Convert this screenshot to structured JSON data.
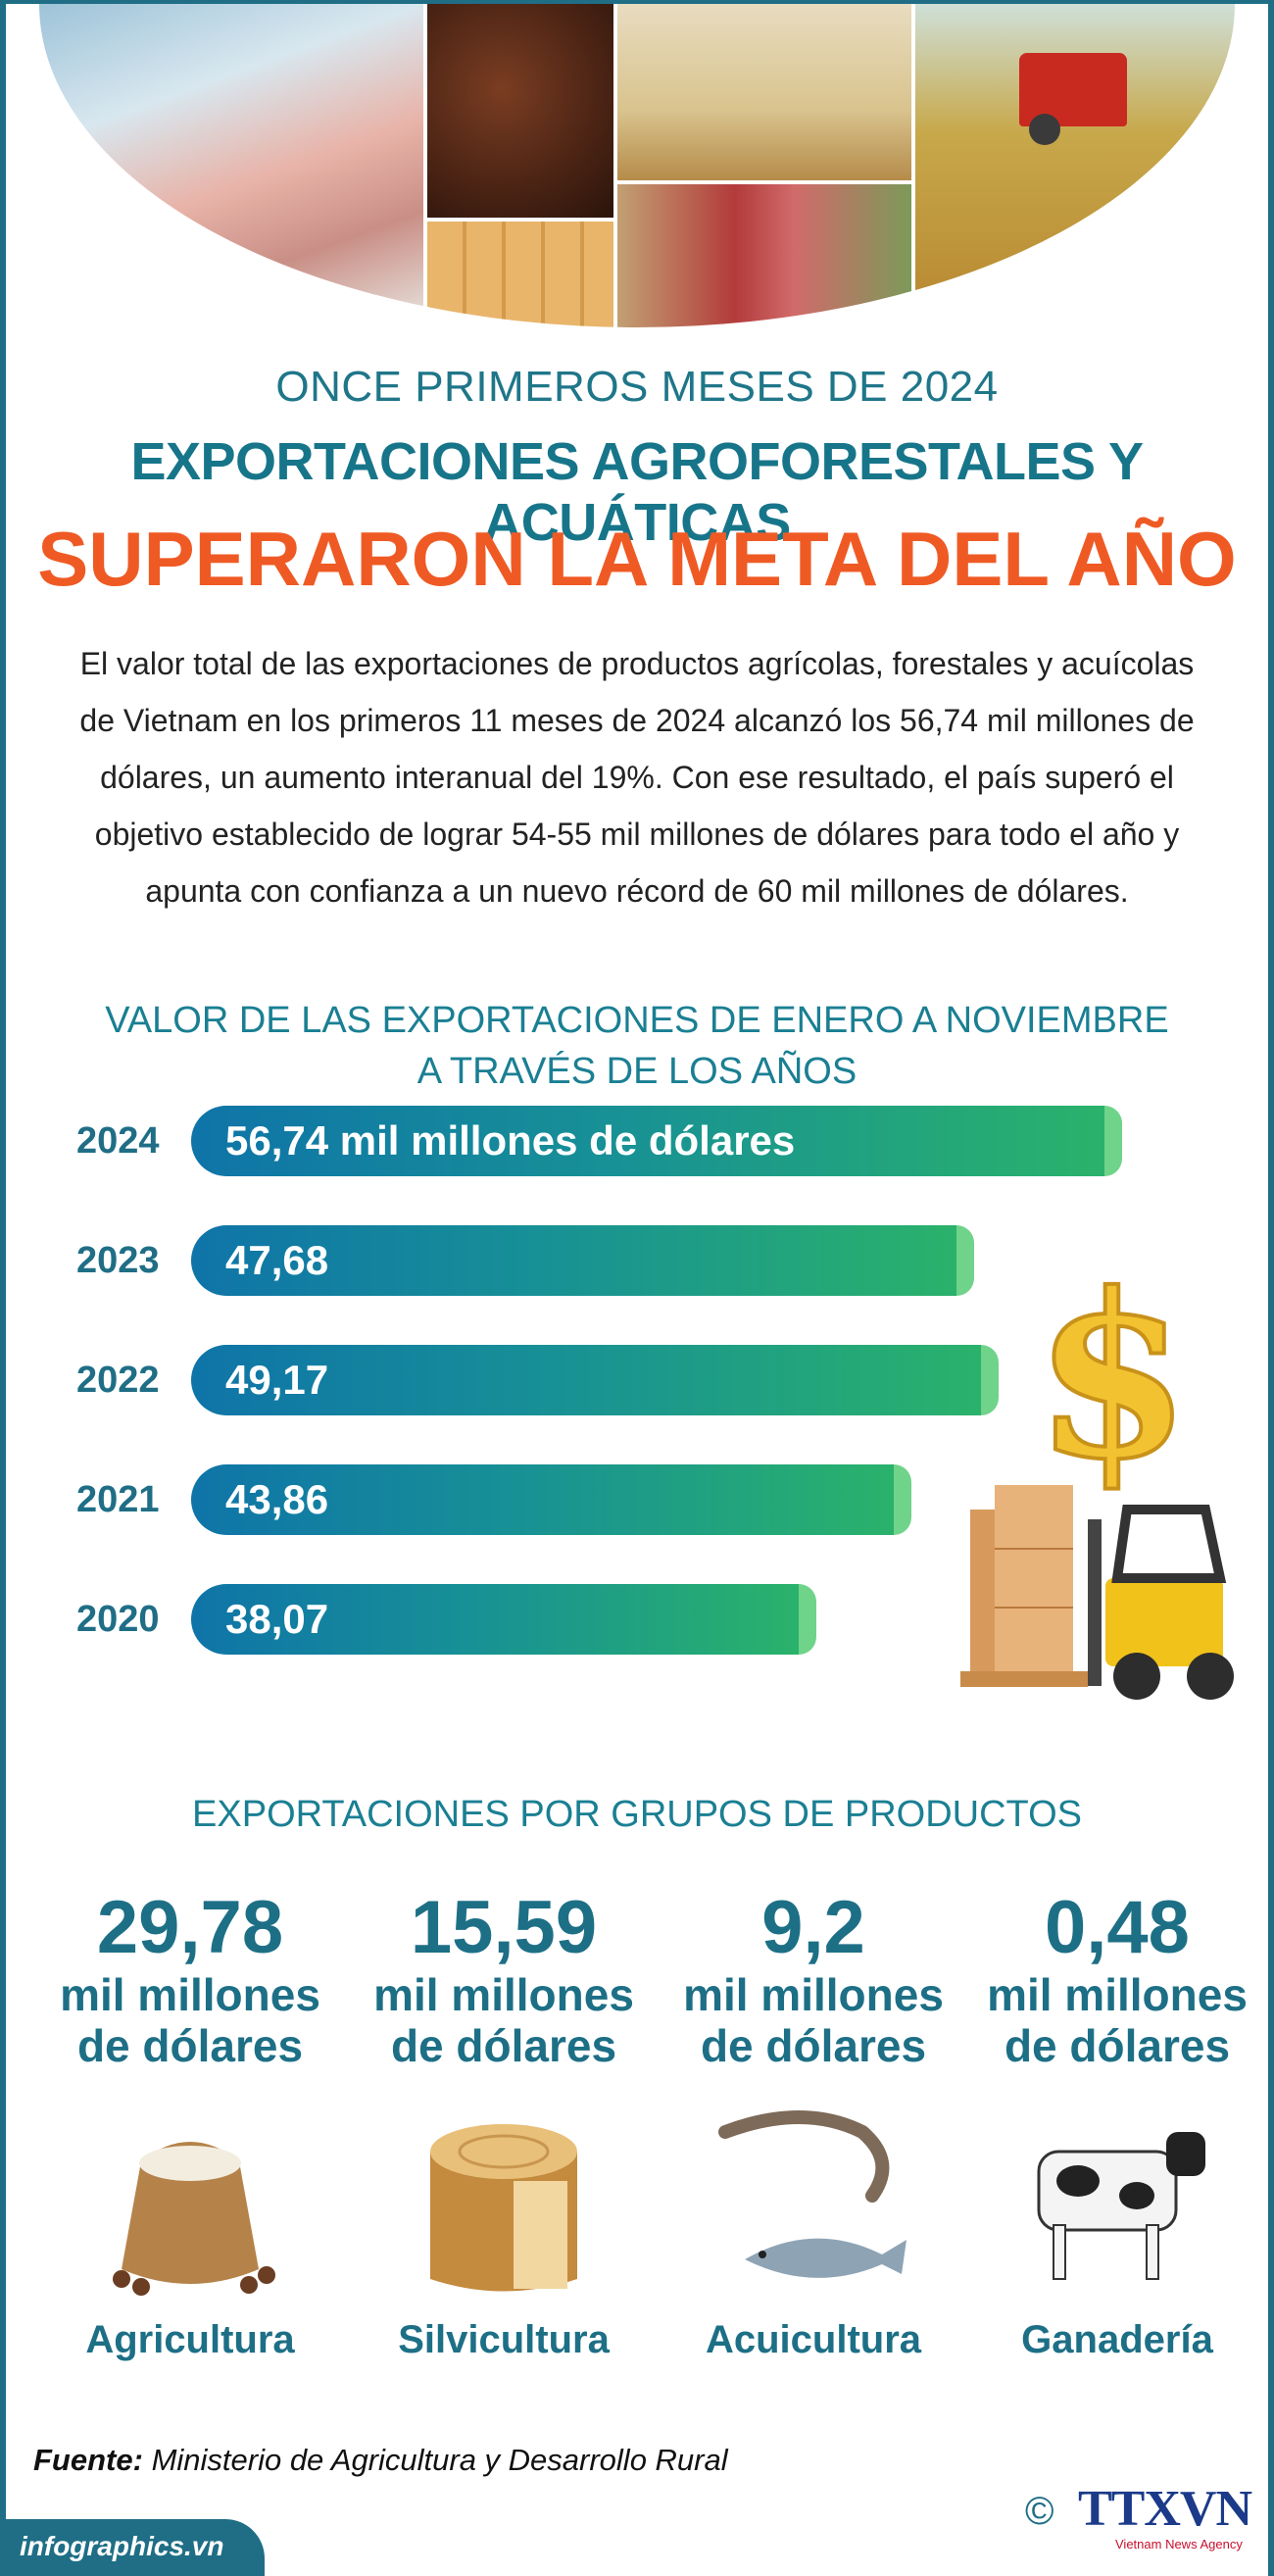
{
  "header": {
    "kicker": "ONCE PRIMEROS MESES DE 2024",
    "title_line1": "EXPORTACIONES AGROFORESTALES Y ACUÁTICAS",
    "title_line2": "SUPERARON LA META DEL AÑO"
  },
  "intro": "El valor total de las exportaciones de productos agrícolas, forestales y acuícolas de Vietnam en los primeros 11 meses de 2024 alcanzó los 56,74 mil millones de dólares, un aumento interanual del 19%. Con ese resultado, el país superó el objetivo establecido de lograr 54-55 mil millones de dólares para todo el año y apunta con confianza a un nuevo récord de 60 mil millones de dólares.",
  "chart_data": {
    "type": "bar",
    "title": "VALOR DE LAS EXPORTACIONES DE ENERO A NOVIEMBRE A TRAVÉS DE LOS AÑOS",
    "title_line1": "VALOR DE LAS EXPORTACIONES DE ENERO A NOVIEMBRE",
    "title_line2": "A TRAVÉS DE LOS AÑOS",
    "categories": [
      "2024",
      "2023",
      "2022",
      "2021",
      "2020"
    ],
    "values": [
      56.74,
      47.68,
      49.17,
      43.86,
      38.07
    ],
    "labels": [
      "56,74 mil millones de dólares",
      "47,68",
      "49,17",
      "43,86",
      "38,07"
    ],
    "orientation": "horizontal",
    "colors": {
      "start": "#0f74a8",
      "end": "#2ab26b"
    }
  },
  "groups": {
    "title": "EXPORTACIONES POR GRUPOS DE PRODUCTOS",
    "unit": "mil millones de dólares",
    "items": [
      {
        "value": "29,78",
        "unit_line1": "mil millones",
        "unit_line2": "de dólares",
        "name": "Agricultura",
        "icon": "rice-sack-icon"
      },
      {
        "value": "15,59",
        "unit_line1": "mil millones",
        "unit_line2": "de dólares",
        "name": "Silvicultura",
        "icon": "wood-log-icon"
      },
      {
        "value": "9,2",
        "unit_line1": "mil millones",
        "unit_line2": "de dólares",
        "name": "Acuicultura",
        "icon": "shrimp-fish-icon"
      },
      {
        "value": "0,48",
        "unit_line1": "mil millones",
        "unit_line2": "de dólares",
        "name": "Ganadería",
        "icon": "cow-icon"
      }
    ]
  },
  "source": {
    "label": "Fuente:",
    "text": "Ministerio de Agricultura y Desarrollo Rural"
  },
  "footer": {
    "site": "infographics.vn",
    "copyright": "©",
    "logo": "TTXVN",
    "logo_sub": "Vietnam News Agency"
  },
  "colors": {
    "teal": "#1f6e86",
    "orange": "#ef5a24",
    "green": "#2ab26b"
  }
}
